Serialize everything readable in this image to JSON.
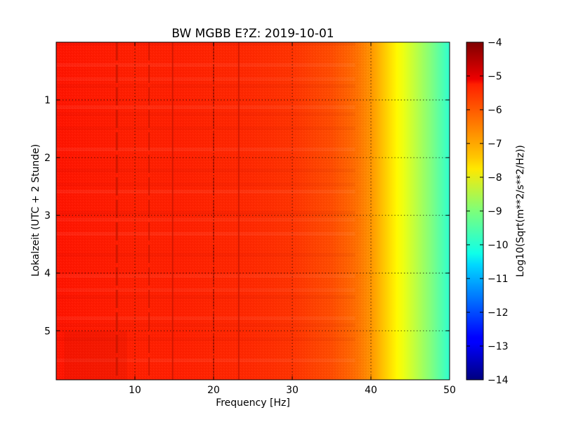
{
  "chart_data": {
    "type": "heatmap",
    "title": "BW MGBB E?Z: 2019-10-01",
    "xlabel": "Frequency [Hz]",
    "ylabel": "Lokalzeit (UTC + 2 Stunde)",
    "xlim": [
      0,
      50
    ],
    "ylim": [
      0,
      5.85
    ],
    "y_inverted": true,
    "x_ticks": [
      10,
      20,
      30,
      40,
      50
    ],
    "x_tick_labels": [
      "10",
      "20",
      "30",
      "40",
      "50"
    ],
    "y_ticks": [
      1,
      2,
      3,
      4,
      5
    ],
    "y_tick_labels": [
      "1",
      "2",
      "3",
      "4",
      "5"
    ],
    "grid": true,
    "colorbar": {
      "label": "Log10(Sqrt(m**2/s**2/Hz))",
      "range": [
        -14,
        -4
      ],
      "ticks": [
        -4,
        -5,
        -6,
        -7,
        -8,
        -9,
        -10,
        -11,
        -12,
        -13,
        -14
      ],
      "tick_labels": [
        "−4",
        "−5",
        "−6",
        "−7",
        "−8",
        "−9",
        "−10",
        "−11",
        "−12",
        "−13",
        "−14"
      ],
      "colormap": "jet"
    },
    "spectrum_profile": {
      "frequency_hz": [
        0,
        5,
        10,
        15,
        20,
        25,
        30,
        35,
        38,
        40,
        42,
        44,
        46,
        48,
        50
      ],
      "log10_amplitude": [
        -5.45,
        -5.5,
        -5.55,
        -5.55,
        -5.6,
        -5.65,
        -5.75,
        -6.0,
        -6.3,
        -6.7,
        -7.3,
        -7.9,
        -8.5,
        -9.1,
        -9.8
      ]
    },
    "spectral_lines_hz": [
      7.7,
      11.8,
      14.8,
      20.0,
      23.2
    ]
  }
}
